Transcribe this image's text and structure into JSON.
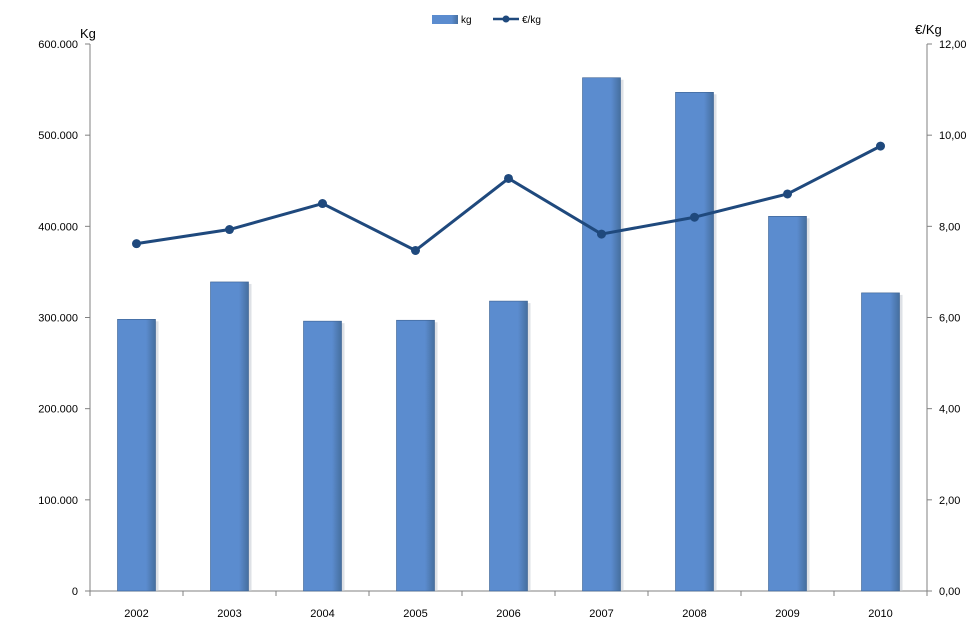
{
  "chart_data": {
    "type": "bar",
    "title": "",
    "categories": [
      "2002",
      "2003",
      "2004",
      "2005",
      "2006",
      "2007",
      "2008",
      "2009",
      "2010"
    ],
    "series": [
      {
        "name": "kg",
        "type": "bar",
        "axis": "left",
        "values": [
          298000,
          339000,
          296000,
          297000,
          318000,
          563000,
          547000,
          411000,
          327000
        ]
      },
      {
        "name": "€/kg",
        "type": "line",
        "axis": "right",
        "values": [
          7.62,
          7.93,
          8.5,
          7.47,
          9.05,
          7.83,
          8.2,
          8.71,
          9.76
        ]
      }
    ],
    "y_left": {
      "label": "Kg",
      "ylim": [
        0,
        600000
      ],
      "ticks": [
        "0",
        "100.000",
        "200.000",
        "300.000",
        "400.000",
        "500.000",
        "600.000"
      ]
    },
    "y_right": {
      "label": "€/Kg",
      "ylim": [
        0,
        12
      ],
      "ticks": [
        "0,00",
        "2,00",
        "4,00",
        "6,00",
        "8,00",
        "10,00",
        "12,00"
      ]
    },
    "grid": false,
    "legend_position": "top-center",
    "colors": {
      "bar_fill": "#5b8ccf",
      "bar_edge": "#3a5f8f",
      "line": "#1f497d",
      "axis": "#808080"
    }
  }
}
